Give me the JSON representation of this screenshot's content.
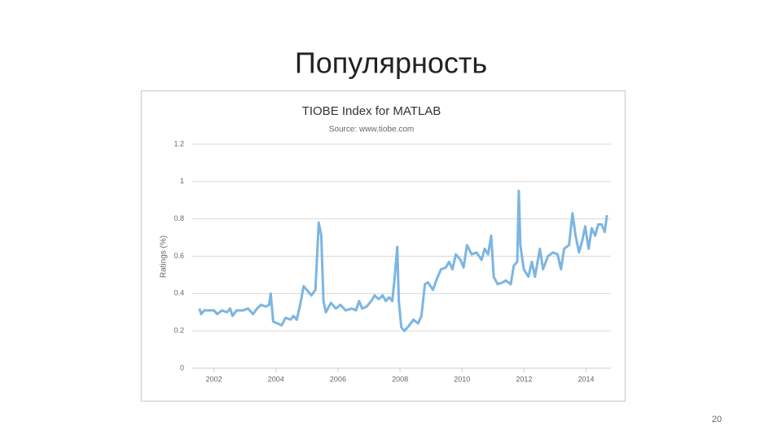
{
  "slide": {
    "title": "Популярность",
    "page_number": "20"
  },
  "chart_data": {
    "type": "line",
    "title": "TIOBE Index for MATLAB",
    "subtitle": "Source: www.tiobe.com",
    "y_label": "Ratings (%)",
    "color": "#7cb5e2",
    "grid": true,
    "xlim": [
      2001.3,
      2014.8
    ],
    "xticks": [
      2002,
      2004,
      2006,
      2008,
      2010,
      2012,
      2014
    ],
    "ylim": [
      0,
      1.2
    ],
    "yticks": [
      0,
      0.2,
      0.4,
      0.6,
      0.8,
      1,
      1.2
    ],
    "x": [
      2001.53,
      2001.59,
      2001.69,
      2001.84,
      2002.0,
      2002.1,
      2002.26,
      2002.42,
      2002.52,
      2002.6,
      2002.73,
      2002.94,
      2003.1,
      2003.26,
      2003.39,
      2003.52,
      2003.67,
      2003.78,
      2003.83,
      2003.91,
      2004.05,
      2004.18,
      2004.31,
      2004.47,
      2004.56,
      2004.67,
      2004.78,
      2004.89,
      2005.04,
      2005.14,
      2005.27,
      2005.38,
      2005.46,
      2005.53,
      2005.61,
      2005.77,
      2005.93,
      2006.08,
      2006.24,
      2006.45,
      2006.58,
      2006.68,
      2006.78,
      2006.92,
      2007.07,
      2007.18,
      2007.31,
      2007.44,
      2007.54,
      2007.65,
      2007.75,
      2007.83,
      2007.91,
      2007.96,
      2008.04,
      2008.14,
      2008.3,
      2008.43,
      2008.58,
      2008.69,
      2008.8,
      2008.9,
      2009.06,
      2009.19,
      2009.32,
      2009.48,
      2009.58,
      2009.69,
      2009.8,
      2009.95,
      2010.05,
      2010.16,
      2010.31,
      2010.47,
      2010.63,
      2010.73,
      2010.84,
      2010.94,
      2011.02,
      2011.15,
      2011.31,
      2011.41,
      2011.57,
      2011.67,
      2011.78,
      2011.83,
      2011.88,
      2011.99,
      2012.14,
      2012.25,
      2012.35,
      2012.51,
      2012.61,
      2012.77,
      2012.93,
      2013.08,
      2013.19,
      2013.29,
      2013.45,
      2013.56,
      2013.66,
      2013.77,
      2013.87,
      2013.97,
      2014.08,
      2014.18,
      2014.29,
      2014.39,
      2014.5,
      2014.6,
      2014.67
    ],
    "values": [
      0.32,
      0.29,
      0.31,
      0.31,
      0.31,
      0.29,
      0.31,
      0.3,
      0.32,
      0.28,
      0.31,
      0.31,
      0.32,
      0.29,
      0.32,
      0.34,
      0.33,
      0.34,
      0.4,
      0.25,
      0.24,
      0.23,
      0.27,
      0.26,
      0.28,
      0.26,
      0.34,
      0.44,
      0.41,
      0.39,
      0.42,
      0.78,
      0.71,
      0.36,
      0.3,
      0.35,
      0.32,
      0.34,
      0.31,
      0.32,
      0.31,
      0.36,
      0.32,
      0.33,
      0.36,
      0.39,
      0.37,
      0.39,
      0.36,
      0.38,
      0.36,
      0.49,
      0.65,
      0.36,
      0.22,
      0.2,
      0.23,
      0.26,
      0.24,
      0.28,
      0.45,
      0.46,
      0.42,
      0.48,
      0.53,
      0.54,
      0.57,
      0.53,
      0.61,
      0.58,
      0.54,
      0.66,
      0.61,
      0.62,
      0.58,
      0.64,
      0.61,
      0.71,
      0.49,
      0.45,
      0.46,
      0.47,
      0.45,
      0.55,
      0.57,
      0.95,
      0.66,
      0.53,
      0.49,
      0.57,
      0.49,
      0.64,
      0.53,
      0.6,
      0.62,
      0.61,
      0.53,
      0.64,
      0.66,
      0.83,
      0.71,
      0.62,
      0.68,
      0.76,
      0.64,
      0.75,
      0.71,
      0.77,
      0.77,
      0.73,
      0.82
    ]
  }
}
